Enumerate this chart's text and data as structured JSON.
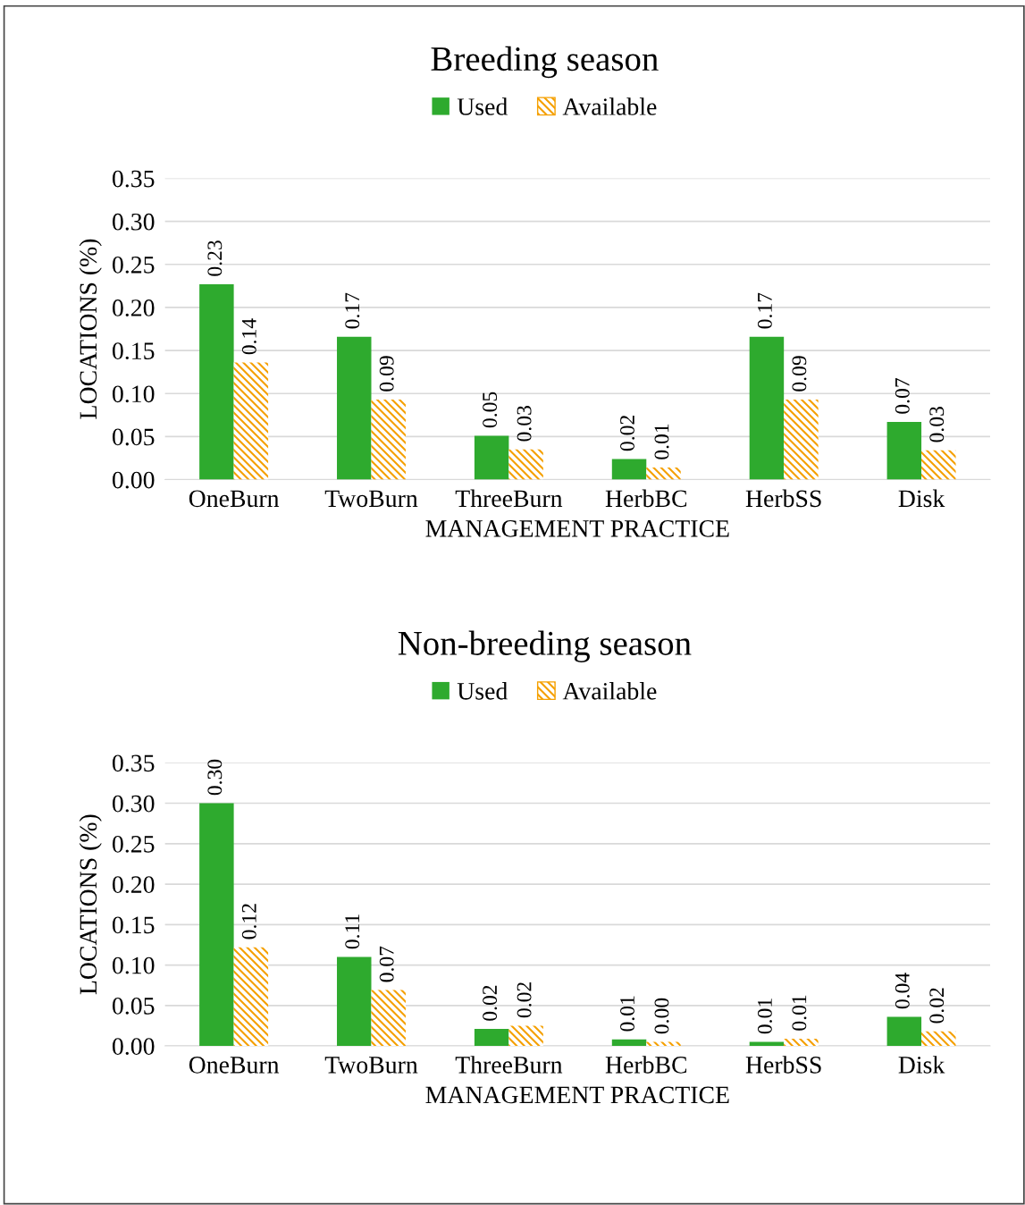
{
  "chart_data": [
    {
      "type": "bar",
      "title": "Breeding season",
      "xlabel": "MANAGEMENT PRACTICE",
      "ylabel": "LOCATIONS (%)",
      "categories": [
        "OneBurn",
        "TwoBurn",
        "ThreeBurn",
        "HerbBC",
        "HerbSS",
        "Disk"
      ],
      "series": [
        {
          "name": "Used",
          "color": "#2eaa2e",
          "values": [
            0.227,
            0.166,
            0.051,
            0.024,
            0.166,
            0.067
          ],
          "value_labels": [
            "0.23",
            "0.17",
            "0.05",
            "0.02",
            "0.17",
            "0.07"
          ]
        },
        {
          "name": "Available",
          "color": "#f5a000",
          "values": [
            0.136,
            0.093,
            0.035,
            0.014,
            0.093,
            0.034
          ],
          "value_labels": [
            "0.14",
            "0.09",
            "0.03",
            "0.01",
            "0.09",
            "0.03"
          ]
        }
      ],
      "ylim": [
        0,
        0.35
      ],
      "yticks": [
        {
          "value": 0,
          "label": "0.00"
        },
        {
          "value": 0.05,
          "label": "0.05"
        },
        {
          "value": 0.1,
          "label": "0.10"
        },
        {
          "value": 0.15,
          "label": "0.15"
        },
        {
          "value": 0.2,
          "label": "0.20"
        },
        {
          "value": 0.25,
          "label": "0.25"
        },
        {
          "value": 0.3,
          "label": "0.30"
        },
        {
          "value": 0.35,
          "label": "0.35"
        }
      ],
      "grid": "y",
      "legend": "top"
    },
    {
      "type": "bar",
      "title": "Non-breeding season",
      "xlabel": "MANAGEMENT PRACTICE",
      "ylabel": "LOCATIONS (%)",
      "categories": [
        "OneBurn",
        "TwoBurn",
        "ThreeBurn",
        "HerbBC",
        "HerbSS",
        "Disk"
      ],
      "series": [
        {
          "name": "Used",
          "color": "#2eaa2e",
          "values": [
            0.3,
            0.11,
            0.021,
            0.008,
            0.005,
            0.036
          ],
          "value_labels": [
            "0.30",
            "0.11",
            "0.02",
            "0.01",
            "0.01",
            "0.04"
          ]
        },
        {
          "name": "Available",
          "color": "#f5a000",
          "values": [
            0.122,
            0.069,
            0.025,
            0.005,
            0.009,
            0.018
          ],
          "value_labels": [
            "0.12",
            "0.07",
            "0.02",
            "0.00",
            "0.01",
            "0.02"
          ]
        }
      ],
      "ylim": [
        0,
        0.35
      ],
      "yticks": [
        {
          "value": 0,
          "label": "0.00"
        },
        {
          "value": 0.05,
          "label": "0.05"
        },
        {
          "value": 0.1,
          "label": "0.10"
        },
        {
          "value": 0.15,
          "label": "0.15"
        },
        {
          "value": 0.2,
          "label": "0.20"
        },
        {
          "value": 0.25,
          "label": "0.25"
        },
        {
          "value": 0.3,
          "label": "0.30"
        },
        {
          "value": 0.35,
          "label": "0.35"
        }
      ],
      "grid": "y",
      "legend": "top"
    }
  ]
}
